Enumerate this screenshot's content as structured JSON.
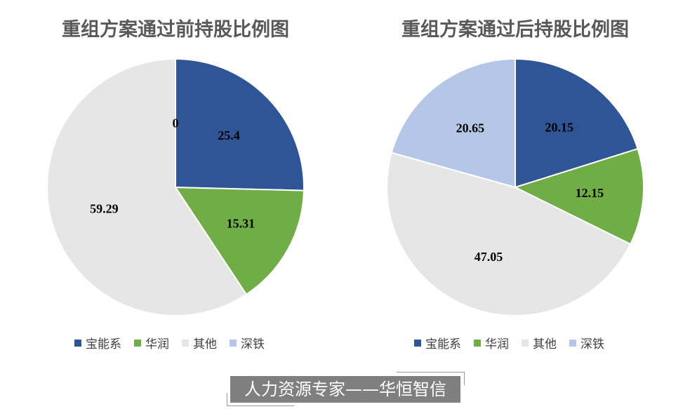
{
  "chart_data": [
    {
      "type": "pie",
      "title": "重组方案通过前持股比例图",
      "categories": [
        "宝能系",
        "华润",
        "其他",
        "深铁"
      ],
      "values": [
        25.4,
        15.31,
        59.29,
        0
      ],
      "colors": [
        "#2F5597",
        "#70AD47",
        "#E7E6E6",
        "#B4C7E7"
      ],
      "legend": "bottom"
    },
    {
      "type": "pie",
      "title": "重组方案通过后持股比例图",
      "categories": [
        "宝能系",
        "华润",
        "其他",
        "深铁"
      ],
      "values": [
        20.15,
        12.15,
        47.05,
        20.65
      ],
      "colors": [
        "#2F5597",
        "#70AD47",
        "#E7E6E6",
        "#B4C7E7"
      ],
      "legend": "bottom"
    }
  ],
  "watermark": "人力资源专家——华恒智信"
}
